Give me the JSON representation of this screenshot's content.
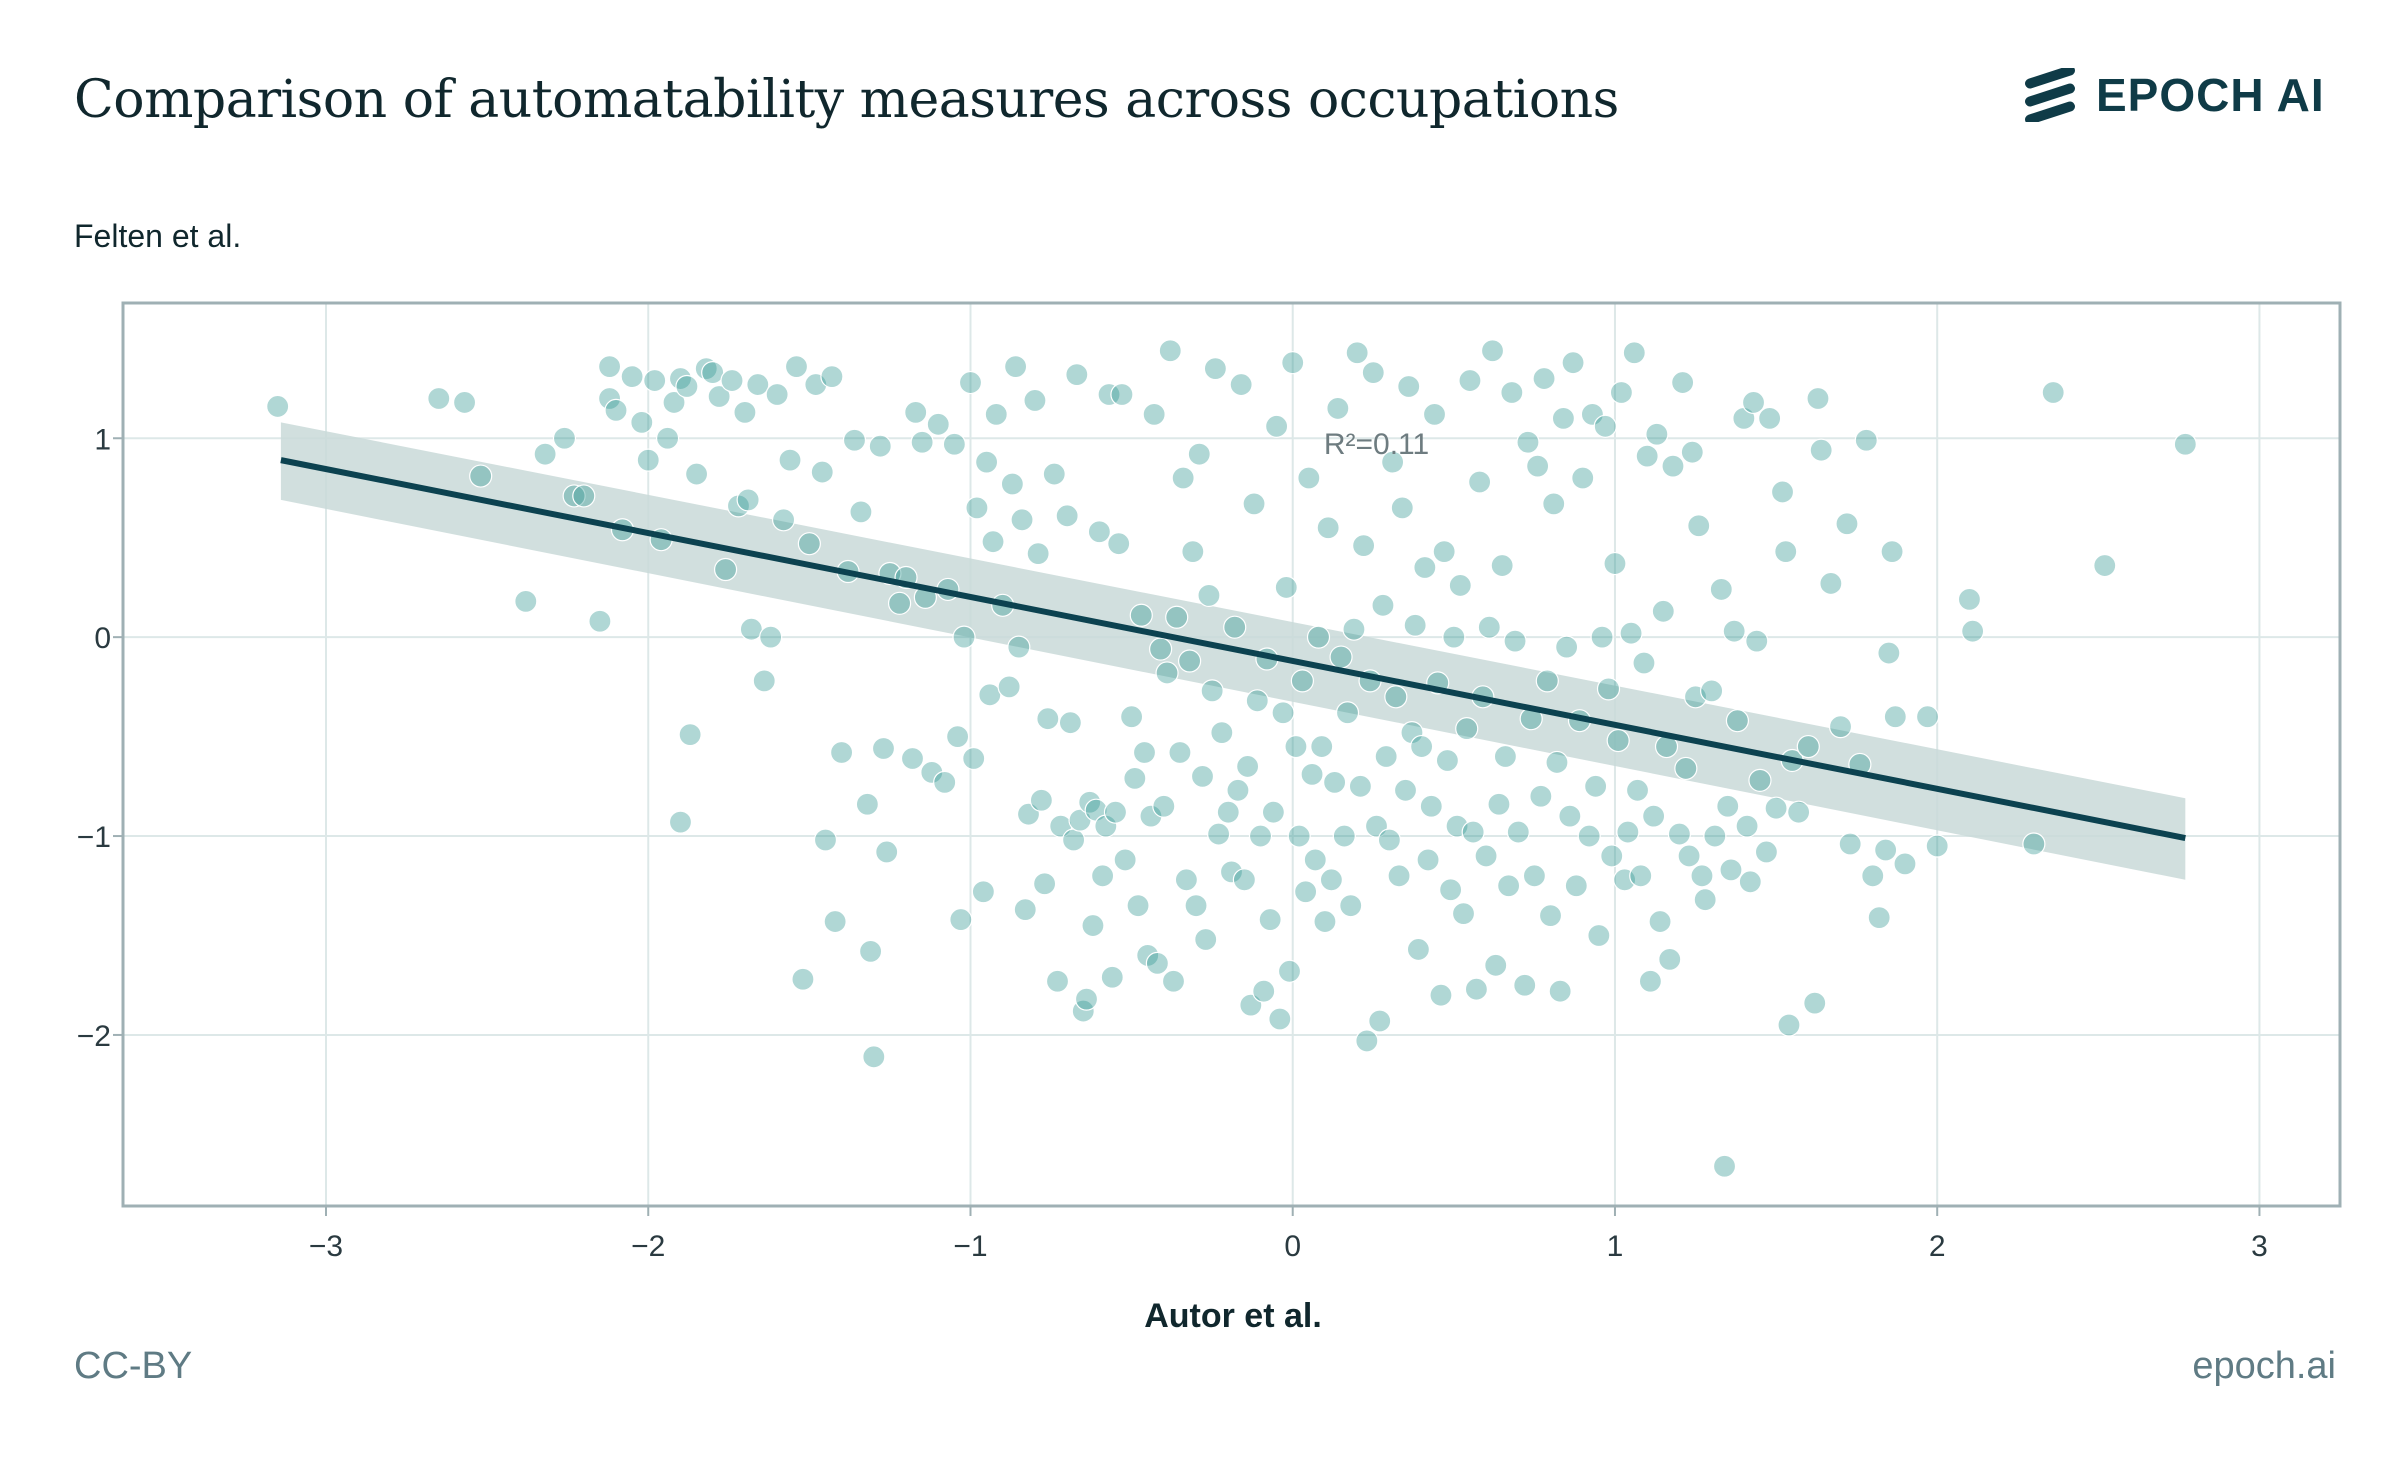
{
  "header": {
    "title": "Comparison of automatability measures across occupations",
    "logo_text": "EPOCH AI",
    "logo_icon": "epoch-stripes-icon"
  },
  "footer": {
    "license": "CC-BY",
    "site": "epoch.ai"
  },
  "colors": {
    "points": "#3a9a96",
    "line": "#0c4250",
    "band": "#c9d9d8",
    "grid": "#dde8e8",
    "frame": "#9fb0b4"
  },
  "chart_data": {
    "type": "scatter",
    "title": "Comparison of automatability measures across occupations",
    "xlabel": "Autor et al.",
    "ylabel": "Felten et al.",
    "xlim": [
      -3.63,
      3.25
    ],
    "ylim": [
      -2.86,
      1.68
    ],
    "xticks": [
      -3,
      -2,
      -1,
      0,
      1,
      2,
      3
    ],
    "yticks": [
      -2,
      -1,
      0,
      1
    ],
    "xtick_labels": [
      "−3",
      "−2",
      "−1",
      "0",
      "1",
      "2",
      "3"
    ],
    "ytick_labels": [
      "−2",
      "−1",
      "0",
      "1"
    ],
    "annotation": {
      "text": "R²=0.11",
      "x": 0.26,
      "y": 0.92
    },
    "regression": {
      "x": [
        -3.14,
        2.77
      ],
      "y": [
        0.89,
        -1.01
      ],
      "band_upper": [
        1.08,
        -0.81
      ],
      "band_lower": [
        0.69,
        -1.22
      ]
    },
    "points": [
      [
        -3.15,
        1.16
      ],
      [
        -2.65,
        1.2
      ],
      [
        -2.57,
        1.18
      ],
      [
        -2.52,
        0.81
      ],
      [
        -2.38,
        0.18
      ],
      [
        -2.32,
        0.92
      ],
      [
        -2.26,
        1.0
      ],
      [
        -2.23,
        0.71
      ],
      [
        -2.2,
        0.71
      ],
      [
        -2.15,
        0.08
      ],
      [
        -2.12,
        1.36
      ],
      [
        -2.12,
        1.2
      ],
      [
        -2.1,
        1.14
      ],
      [
        -2.08,
        0.54
      ],
      [
        -2.05,
        1.31
      ],
      [
        -2.02,
        1.08
      ],
      [
        -2.0,
        0.89
      ],
      [
        -1.98,
        1.29
      ],
      [
        -1.96,
        0.49
      ],
      [
        -1.94,
        1.0
      ],
      [
        -1.92,
        1.18
      ],
      [
        -1.9,
        1.3
      ],
      [
        -1.88,
        1.26
      ],
      [
        -1.87,
        -0.49
      ],
      [
        -1.85,
        0.82
      ],
      [
        -1.9,
        -0.93
      ],
      [
        -1.82,
        1.35
      ],
      [
        -1.8,
        1.33
      ],
      [
        -1.78,
        1.21
      ],
      [
        -1.76,
        0.34
      ],
      [
        -1.74,
        1.29
      ],
      [
        -1.72,
        0.66
      ],
      [
        -1.7,
        1.13
      ],
      [
        -1.69,
        0.69
      ],
      [
        -1.68,
        0.04
      ],
      [
        -1.66,
        1.27
      ],
      [
        -1.64,
        -0.22
      ],
      [
        -1.62,
        0.0
      ],
      [
        -1.6,
        1.22
      ],
      [
        -1.58,
        0.59
      ],
      [
        -1.56,
        0.89
      ],
      [
        -1.54,
        1.36
      ],
      [
        -1.52,
        -1.72
      ],
      [
        -1.5,
        0.47
      ],
      [
        -1.48,
        1.27
      ],
      [
        -1.46,
        0.83
      ],
      [
        -1.45,
        -1.02
      ],
      [
        -1.43,
        1.31
      ],
      [
        -1.42,
        -1.43
      ],
      [
        -1.4,
        -0.58
      ],
      [
        -1.38,
        0.33
      ],
      [
        -1.36,
        0.99
      ],
      [
        -1.34,
        0.63
      ],
      [
        -1.32,
        -0.84
      ],
      [
        -1.31,
        -1.58
      ],
      [
        -1.3,
        -2.11
      ],
      [
        -1.28,
        0.96
      ],
      [
        -1.27,
        -0.56
      ],
      [
        -1.26,
        -1.08
      ],
      [
        -1.25,
        0.32
      ],
      [
        -1.22,
        0.17
      ],
      [
        -1.2,
        0.3
      ],
      [
        -1.18,
        -0.61
      ],
      [
        -1.17,
        1.13
      ],
      [
        -1.15,
        0.98
      ],
      [
        -1.14,
        0.2
      ],
      [
        -1.12,
        -0.68
      ],
      [
        -1.1,
        1.07
      ],
      [
        -1.08,
        -0.73
      ],
      [
        -1.07,
        0.24
      ],
      [
        -1.05,
        0.97
      ],
      [
        -1.04,
        -0.5
      ],
      [
        -1.03,
        -1.42
      ],
      [
        -1.02,
        0.0
      ],
      [
        -1.0,
        1.28
      ],
      [
        -0.99,
        -0.61
      ],
      [
        -0.98,
        0.65
      ],
      [
        -0.96,
        -1.28
      ],
      [
        -0.95,
        0.88
      ],
      [
        -0.94,
        -0.29
      ],
      [
        -0.93,
        0.48
      ],
      [
        -0.92,
        1.12
      ],
      [
        -0.9,
        0.16
      ],
      [
        -0.88,
        -0.25
      ],
      [
        -0.87,
        0.77
      ],
      [
        -0.86,
        1.36
      ],
      [
        -0.85,
        -0.05
      ],
      [
        -0.84,
        0.59
      ],
      [
        -0.83,
        -1.37
      ],
      [
        -0.82,
        -0.89
      ],
      [
        -0.8,
        1.19
      ],
      [
        -0.79,
        0.42
      ],
      [
        -0.78,
        -0.82
      ],
      [
        -0.77,
        -1.24
      ],
      [
        -0.76,
        -0.41
      ],
      [
        -0.74,
        0.82
      ],
      [
        -0.73,
        -1.73
      ],
      [
        -0.72,
        -0.95
      ],
      [
        -0.7,
        0.61
      ],
      [
        -0.69,
        -0.43
      ],
      [
        -0.68,
        -1.02
      ],
      [
        -0.67,
        1.32
      ],
      [
        -0.66,
        -0.92
      ],
      [
        -0.65,
        -1.88
      ],
      [
        -0.64,
        -1.82
      ],
      [
        -0.63,
        -0.83
      ],
      [
        -0.62,
        -1.45
      ],
      [
        -0.61,
        -0.87
      ],
      [
        -0.6,
        0.53
      ],
      [
        -0.59,
        -1.2
      ],
      [
        -0.58,
        -0.95
      ],
      [
        -0.57,
        1.22
      ],
      [
        -0.56,
        -1.71
      ],
      [
        -0.55,
        -0.88
      ],
      [
        -0.54,
        0.47
      ],
      [
        -0.53,
        1.22
      ],
      [
        -0.52,
        -1.12
      ],
      [
        -0.5,
        -0.4
      ],
      [
        -0.49,
        -0.71
      ],
      [
        -0.48,
        -1.35
      ],
      [
        -0.47,
        0.11
      ],
      [
        -0.46,
        -0.58
      ],
      [
        -0.45,
        -1.6
      ],
      [
        -0.44,
        -0.9
      ],
      [
        -0.43,
        1.12
      ],
      [
        -0.42,
        -1.64
      ],
      [
        -0.41,
        -0.06
      ],
      [
        -0.4,
        -0.85
      ],
      [
        -0.39,
        -0.18
      ],
      [
        -0.38,
        1.44
      ],
      [
        -0.37,
        -1.73
      ],
      [
        -0.36,
        0.1
      ],
      [
        -0.35,
        -0.58
      ],
      [
        -0.34,
        0.8
      ],
      [
        -0.33,
        -1.22
      ],
      [
        -0.32,
        -0.12
      ],
      [
        -0.31,
        0.43
      ],
      [
        -0.3,
        -1.35
      ],
      [
        -0.29,
        0.92
      ],
      [
        -0.28,
        -0.7
      ],
      [
        -0.27,
        -1.52
      ],
      [
        -0.26,
        0.21
      ],
      [
        -0.25,
        -0.27
      ],
      [
        -0.24,
        1.35
      ],
      [
        -0.23,
        -0.99
      ],
      [
        -0.22,
        -0.48
      ],
      [
        -0.2,
        -0.88
      ],
      [
        -0.19,
        -1.18
      ],
      [
        -0.18,
        0.05
      ],
      [
        -0.17,
        -0.77
      ],
      [
        -0.16,
        1.27
      ],
      [
        -0.15,
        -1.22
      ],
      [
        -0.14,
        -0.65
      ],
      [
        -0.13,
        -1.85
      ],
      [
        -0.12,
        0.67
      ],
      [
        -0.11,
        -0.32
      ],
      [
        -0.1,
        -1.0
      ],
      [
        -0.09,
        -1.78
      ],
      [
        -0.08,
        -0.11
      ],
      [
        -0.07,
        -1.42
      ],
      [
        -0.06,
        -0.88
      ],
      [
        -0.05,
        1.06
      ],
      [
        -0.04,
        -1.92
      ],
      [
        -0.03,
        -0.38
      ],
      [
        -0.02,
        0.25
      ],
      [
        -0.01,
        -1.68
      ],
      [
        0.0,
        1.38
      ],
      [
        0.01,
        -0.55
      ],
      [
        0.02,
        -1.0
      ],
      [
        0.03,
        -0.22
      ],
      [
        0.04,
        -1.28
      ],
      [
        0.05,
        0.8
      ],
      [
        0.06,
        -0.69
      ],
      [
        0.07,
        -1.12
      ],
      [
        0.08,
        0.0
      ],
      [
        0.09,
        -0.55
      ],
      [
        0.1,
        -1.43
      ],
      [
        0.11,
        0.55
      ],
      [
        0.12,
        -1.22
      ],
      [
        0.13,
        -0.73
      ],
      [
        0.14,
        1.15
      ],
      [
        0.15,
        -0.1
      ],
      [
        0.16,
        -1.0
      ],
      [
        0.17,
        -0.38
      ],
      [
        0.18,
        -1.35
      ],
      [
        0.19,
        0.04
      ],
      [
        0.2,
        1.43
      ],
      [
        0.21,
        -0.75
      ],
      [
        0.22,
        0.46
      ],
      [
        0.23,
        -2.03
      ],
      [
        0.24,
        -0.22
      ],
      [
        0.25,
        1.33
      ],
      [
        0.26,
        -0.95
      ],
      [
        0.27,
        -1.93
      ],
      [
        0.28,
        0.16
      ],
      [
        0.29,
        -0.6
      ],
      [
        0.3,
        -1.02
      ],
      [
        0.31,
        0.88
      ],
      [
        0.32,
        -0.3
      ],
      [
        0.33,
        -1.2
      ],
      [
        0.34,
        0.65
      ],
      [
        0.35,
        -0.77
      ],
      [
        0.36,
        1.26
      ],
      [
        0.37,
        -0.48
      ],
      [
        0.38,
        0.06
      ],
      [
        0.39,
        -1.57
      ],
      [
        0.4,
        -0.55
      ],
      [
        0.41,
        0.35
      ],
      [
        0.42,
        -1.12
      ],
      [
        0.43,
        -0.85
      ],
      [
        0.44,
        1.12
      ],
      [
        0.45,
        -0.23
      ],
      [
        0.46,
        -1.8
      ],
      [
        0.47,
        0.43
      ],
      [
        0.48,
        -0.62
      ],
      [
        0.49,
        -1.27
      ],
      [
        0.5,
        0.0
      ],
      [
        0.51,
        -0.95
      ],
      [
        0.52,
        0.26
      ],
      [
        0.53,
        -1.39
      ],
      [
        0.54,
        -0.46
      ],
      [
        0.55,
        1.29
      ],
      [
        0.56,
        -0.98
      ],
      [
        0.57,
        -1.77
      ],
      [
        0.58,
        0.78
      ],
      [
        0.59,
        -0.3
      ],
      [
        0.6,
        -1.1
      ],
      [
        0.61,
        0.05
      ],
      [
        0.62,
        1.44
      ],
      [
        0.63,
        -1.65
      ],
      [
        0.64,
        -0.84
      ],
      [
        0.65,
        0.36
      ],
      [
        0.66,
        -0.6
      ],
      [
        0.67,
        -1.25
      ],
      [
        0.68,
        1.23
      ],
      [
        0.69,
        -0.02
      ],
      [
        0.7,
        -0.98
      ],
      [
        0.72,
        -1.75
      ],
      [
        0.73,
        0.98
      ],
      [
        0.74,
        -0.41
      ],
      [
        0.75,
        -1.2
      ],
      [
        0.76,
        0.86
      ],
      [
        0.77,
        -0.8
      ],
      [
        0.78,
        1.3
      ],
      [
        0.79,
        -0.22
      ],
      [
        0.8,
        -1.4
      ],
      [
        0.81,
        0.67
      ],
      [
        0.82,
        -0.63
      ],
      [
        0.83,
        -1.78
      ],
      [
        0.84,
        1.1
      ],
      [
        0.85,
        -0.05
      ],
      [
        0.86,
        -0.9
      ],
      [
        0.87,
        1.38
      ],
      [
        0.88,
        -1.25
      ],
      [
        0.89,
        -0.42
      ],
      [
        0.9,
        0.8
      ],
      [
        0.92,
        -1.0
      ],
      [
        0.93,
        1.12
      ],
      [
        0.94,
        -0.75
      ],
      [
        0.95,
        -1.5
      ],
      [
        0.96,
        0.0
      ],
      [
        0.97,
        1.06
      ],
      [
        0.98,
        -0.26
      ],
      [
        0.99,
        -1.1
      ],
      [
        1.0,
        0.37
      ],
      [
        1.01,
        -0.52
      ],
      [
        1.02,
        1.23
      ],
      [
        1.03,
        -1.22
      ],
      [
        1.04,
        -0.98
      ],
      [
        1.05,
        0.02
      ],
      [
        1.06,
        1.43
      ],
      [
        1.07,
        -0.77
      ],
      [
        1.08,
        -1.2
      ],
      [
        1.09,
        -0.13
      ],
      [
        1.1,
        0.91
      ],
      [
        1.11,
        -1.73
      ],
      [
        1.12,
        -0.9
      ],
      [
        1.13,
        1.02
      ],
      [
        1.14,
        -1.43
      ],
      [
        1.15,
        0.13
      ],
      [
        1.16,
        -0.55
      ],
      [
        1.17,
        -1.62
      ],
      [
        1.18,
        0.86
      ],
      [
        1.2,
        -0.99
      ],
      [
        1.21,
        1.28
      ],
      [
        1.22,
        -0.66
      ],
      [
        1.23,
        -1.1
      ],
      [
        1.24,
        0.93
      ],
      [
        1.25,
        -0.3
      ],
      [
        1.26,
        0.56
      ],
      [
        1.27,
        -1.2
      ],
      [
        1.28,
        -1.32
      ],
      [
        1.3,
        -0.27
      ],
      [
        1.31,
        -1.0
      ],
      [
        1.33,
        0.24
      ],
      [
        1.34,
        -2.66
      ],
      [
        1.35,
        -0.85
      ],
      [
        1.36,
        -1.17
      ],
      [
        1.37,
        0.03
      ],
      [
        1.38,
        -0.42
      ],
      [
        1.4,
        1.1
      ],
      [
        1.41,
        -0.95
      ],
      [
        1.42,
        -1.23
      ],
      [
        1.43,
        1.18
      ],
      [
        1.44,
        -0.02
      ],
      [
        1.45,
        -0.72
      ],
      [
        1.47,
        -1.08
      ],
      [
        1.48,
        1.1
      ],
      [
        1.5,
        -0.86
      ],
      [
        1.52,
        0.73
      ],
      [
        1.53,
        0.43
      ],
      [
        1.54,
        -1.95
      ],
      [
        1.55,
        -0.62
      ],
      [
        1.57,
        -0.88
      ],
      [
        1.6,
        -0.55
      ],
      [
        1.62,
        -1.84
      ],
      [
        1.63,
        1.2
      ],
      [
        1.64,
        0.94
      ],
      [
        1.67,
        0.27
      ],
      [
        1.7,
        -0.45
      ],
      [
        1.72,
        0.57
      ],
      [
        1.73,
        -1.04
      ],
      [
        1.76,
        -0.64
      ],
      [
        1.78,
        0.99
      ],
      [
        1.8,
        -1.2
      ],
      [
        1.82,
        -1.41
      ],
      [
        1.84,
        -1.07
      ],
      [
        1.85,
        -0.08
      ],
      [
        1.86,
        0.43
      ],
      [
        1.87,
        -0.4
      ],
      [
        1.9,
        -1.14
      ],
      [
        1.97,
        -0.4
      ],
      [
        2.0,
        -1.05
      ],
      [
        2.1,
        0.19
      ],
      [
        2.11,
        0.03
      ],
      [
        2.3,
        -1.04
      ],
      [
        2.36,
        1.23
      ],
      [
        2.52,
        0.36
      ],
      [
        2.77,
        0.97
      ]
    ]
  }
}
